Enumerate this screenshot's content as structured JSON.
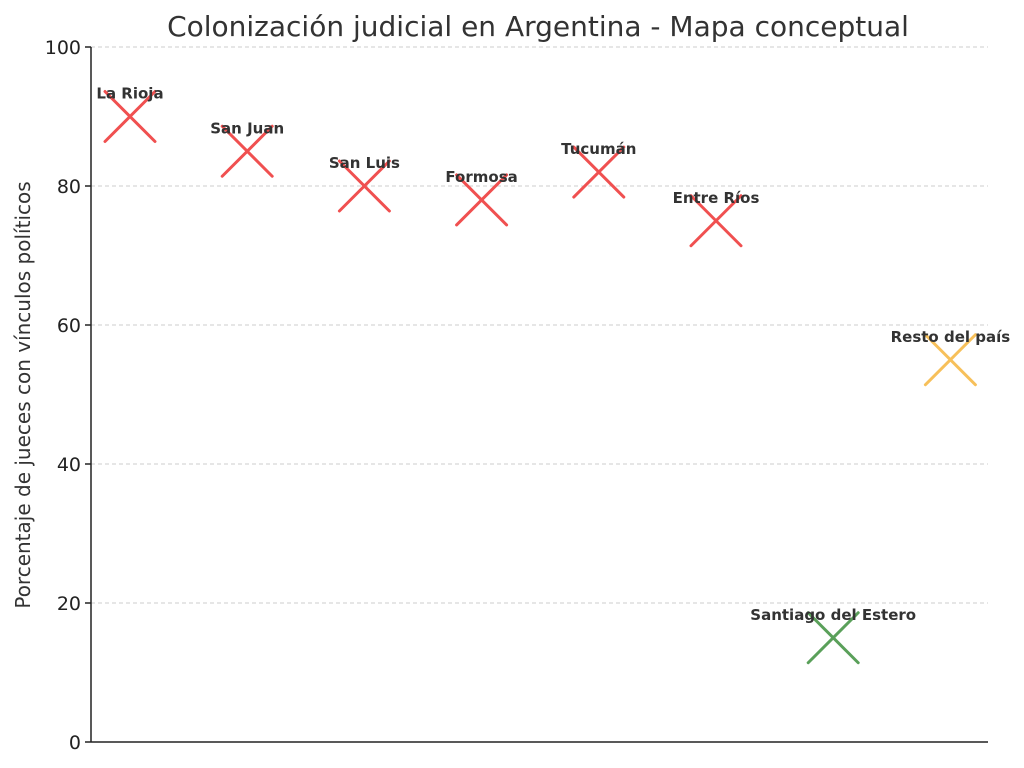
{
  "chart_data": {
    "type": "scatter",
    "title": "Colonización judicial en Argentina - Mapa conceptual",
    "xlabel": "",
    "ylabel": "Porcentaje de jueces con vínculos políticos",
    "ylim": [
      0,
      100
    ],
    "yticks": [
      0,
      20,
      40,
      60,
      80,
      100
    ],
    "grid": "horizontal dashed",
    "marker": "x",
    "colors": {
      "red": "#f05050",
      "orange": "#f7c05a",
      "green": "#5aa05a"
    },
    "points": [
      {
        "label": "La Rioja",
        "value": 90,
        "color": "#f05050"
      },
      {
        "label": "San Juan",
        "value": 85,
        "color": "#f05050"
      },
      {
        "label": "San Luis",
        "value": 80,
        "color": "#f05050"
      },
      {
        "label": "Formosa",
        "value": 78,
        "color": "#f05050"
      },
      {
        "label": "Tucumán",
        "value": 82,
        "color": "#f05050"
      },
      {
        "label": "Entre Ríos",
        "value": 75,
        "color": "#f05050"
      },
      {
        "label": "Santiago del Estero",
        "value": 15,
        "color": "#5aa05a"
      },
      {
        "label": "Resto del país",
        "value": 55,
        "color": "#f7c05a"
      }
    ]
  }
}
